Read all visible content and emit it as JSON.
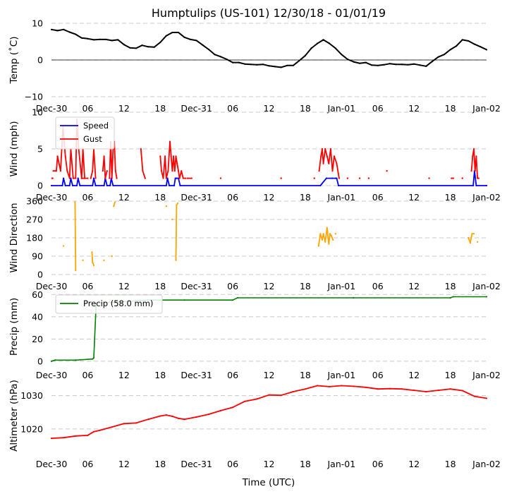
{
  "title": "Humptulips (US-101) 12/30/18 - 01/01/19",
  "xlabel": "Time (UTC)",
  "x_ticks": [
    "Dec-30",
    "06",
    "12",
    "18",
    "Dec-31",
    "06",
    "12",
    "18",
    "Jan-01",
    "06",
    "12",
    "18",
    "Jan-02"
  ],
  "x_range_hours": [
    0,
    72
  ],
  "colors": {
    "temp": "#000000",
    "speed": "#0000ff",
    "gust": "#ff0000",
    "direction": "#ffa500",
    "precip": "#008000",
    "altimeter": "#ff0000",
    "grid": "#c8c8c8"
  },
  "chart_data": [
    {
      "type": "line",
      "id": "temp",
      "ylabel": "Temp (˚C)",
      "ylim": [
        -10,
        10
      ],
      "yticks": [
        "10",
        "0",
        "−10"
      ],
      "ytick_values": [
        10,
        0,
        -10
      ],
      "zero_line": true,
      "series": [
        {
          "name": "Temp",
          "x": [
            0,
            1,
            2,
            3,
            4,
            5,
            6,
            7,
            8,
            9,
            10,
            11,
            12,
            13,
            14,
            15,
            16,
            17,
            18,
            19,
            20,
            21,
            22,
            23,
            24,
            25,
            26,
            27,
            28,
            29,
            30,
            31,
            32,
            33,
            34,
            35,
            36,
            37,
            38,
            39,
            40,
            41,
            42,
            43,
            44,
            45,
            46,
            47,
            48,
            49,
            50,
            51,
            52,
            53,
            54,
            55,
            56,
            57,
            58,
            59,
            60,
            61,
            62,
            63,
            64,
            65,
            66,
            67,
            68,
            69,
            70,
            71,
            72
          ],
          "values": [
            8.3,
            8.0,
            8.3,
            7.6,
            7.0,
            6.0,
            5.8,
            5.5,
            5.6,
            5.6,
            5.3,
            5.5,
            4.2,
            3.3,
            3.2,
            4.0,
            3.6,
            3.5,
            4.8,
            6.6,
            7.5,
            7.5,
            6.2,
            5.6,
            5.3,
            4.1,
            2.9,
            1.5,
            0.9,
            0.2,
            -0.7,
            -0.7,
            -1.1,
            -1.2,
            -1.3,
            -1.2,
            -1.6,
            -1.8,
            -2.0,
            -1.5,
            -1.5,
            -0.2,
            1.2,
            3.2,
            4.5,
            5.5,
            4.5,
            3.2,
            1.5,
            0.2,
            -0.5,
            -0.9,
            -0.7,
            -1.4,
            -1.5,
            -1.3,
            -1.0,
            -1.2,
            -1.2,
            -1.3,
            -1.1,
            -1.4,
            -1.7,
            -0.4,
            0.8,
            1.5,
            2.8,
            3.8,
            5.5,
            5.2,
            4.3,
            3.6,
            2.8
          ]
        }
      ]
    },
    {
      "type": "line",
      "id": "wind",
      "ylabel": "Wind (mph)",
      "ylim": [
        0,
        10
      ],
      "yticks": [
        "10",
        "5",
        "0"
      ],
      "ytick_values": [
        10,
        5,
        0
      ],
      "legend": [
        "Speed",
        "Gust"
      ],
      "legend_loc": "upper-left",
      "series": [
        {
          "name": "Speed",
          "x": [
            0,
            1.8,
            2.0,
            2.3,
            3.0,
            3.2,
            3.5,
            4.2,
            4.4,
            4.7,
            6.8,
            7.0,
            7.3,
            8.7,
            8.9,
            9.2,
            9.7,
            9.9,
            10.2,
            19.0,
            19.2,
            19.5,
            20.3,
            20.5,
            20.7,
            21.0,
            21.3,
            44.5,
            45.5,
            46.5,
            47.0,
            47.2,
            47.5,
            69.8,
            70.0,
            70.3,
            72
          ],
          "values": [
            0,
            0,
            1,
            0,
            0,
            1,
            0,
            0,
            1,
            0,
            0,
            1,
            0,
            0,
            1,
            0,
            0,
            1,
            0,
            0,
            1,
            0,
            0,
            1,
            1,
            1,
            0,
            0,
            1,
            1,
            1,
            1,
            0,
            0,
            2,
            0,
            0
          ]
        },
        {
          "name": "Gust",
          "segments": [
            {
              "x": [
                0.1,
                0.2
              ],
              "values": [
                1,
                1
              ]
            },
            {
              "x": [
                0.3,
                0.8,
                1.0,
                1.5,
                1.9,
                2.3,
                2.6,
                3.0,
                3.2,
                3.6,
                4.0,
                4.2,
                4.5,
                5.0,
                5.5
              ],
              "values": [
                2,
                2,
                4,
                2,
                8,
                4,
                2,
                1,
                5,
                1,
                1,
                9,
                5,
                1,
                1
              ]
            },
            {
              "x": [
                5.0,
                5.2,
                5.5,
                6.0
              ],
              "values": [
                1,
                5,
                1,
                1
              ]
            },
            {
              "x": [
                6.5,
                6.8,
                7.0,
                7.3
              ],
              "values": [
                1,
                2,
                5,
                1
              ]
            },
            {
              "x": [
                8.5,
                8.7,
                8.9,
                9.2
              ],
              "values": [
                2,
                4,
                1,
                2
              ]
            },
            {
              "x": [
                9.6,
                9.8,
                10.0,
                10.2,
                10.4,
                10.6,
                10.8
              ],
              "values": [
                1,
                6,
                1,
                5,
                6,
                2,
                1
              ]
            },
            {
              "x": [
                14.8,
                15.1,
                15.5
              ],
              "values": [
                5,
                2,
                1
              ]
            },
            {
              "x": [
                18.0,
                18.2,
                18.5,
                18.8,
                19.0,
                19.3,
                19.6,
                19.8,
                20.0,
                20.2,
                20.4,
                20.6,
                20.8,
                21.0,
                21.2,
                21.5,
                21.8,
                22.2
              ],
              "values": [
                4,
                2,
                1,
                4,
                1,
                2,
                6,
                4,
                2,
                4,
                2,
                4,
                3,
                2,
                1,
                2,
                1,
                1
              ]
            },
            {
              "x": [
                22.5,
                23.2
              ],
              "values": [
                1,
                1
              ]
            },
            {
              "x": [
                44.3,
                44.6,
                44.8,
                45.0,
                45.3,
                45.6,
                45.9,
                46.2,
                46.5,
                46.8,
                47.2,
                47.6
              ],
              "values": [
                2,
                4,
                5,
                3,
                5,
                4,
                3,
                5,
                2,
                4,
                3,
                1
              ]
            },
            {
              "x": [
                66.2,
                66.5
              ],
              "values": [
                1,
                1
              ]
            },
            {
              "x": [
                69.5,
                69.7,
                69.9,
                70.1,
                70.3,
                70.5,
                70.7
              ],
              "values": [
                2,
                4,
                5,
                2,
                4,
                1,
                1
              ]
            }
          ],
          "points": [
            [
              28,
              1
            ],
            [
              38,
              1
            ],
            [
              43.5,
              1
            ],
            [
              49,
              1
            ],
            [
              51,
              1
            ],
            [
              52.5,
              1
            ],
            [
              55.5,
              2
            ],
            [
              62.5,
              1
            ],
            [
              68,
              1
            ]
          ]
        }
      ]
    },
    {
      "type": "scatter",
      "id": "direction",
      "ylabel": "Wind Direction",
      "ylim": [
        0,
        360
      ],
      "yticks": [
        "360",
        "270",
        "180",
        "90",
        "0"
      ],
      "ytick_values": [
        360,
        270,
        180,
        90,
        0
      ],
      "series": [
        {
          "name": "Direction",
          "segments": [
            {
              "x": [
                3.9,
                4.0
              ],
              "values": [
                355,
                20
              ]
            },
            {
              "x": [
                6.7,
                6.8,
                7.0
              ],
              "values": [
                110,
                60,
                45
              ]
            },
            {
              "x": [
                10.3,
                10.5
              ],
              "values": [
                335,
                355
              ]
            },
            {
              "x": [
                20.6,
                20.7,
                20.9
              ],
              "values": [
                70,
                340,
                350
              ]
            },
            {
              "x": [
                44.2,
                44.5,
                44.8,
                45.0,
                45.3,
                45.6,
                45.9,
                46.1,
                46.3,
                46.6
              ],
              "values": [
                140,
                200,
                170,
                200,
                160,
                230,
                150,
                200,
                190,
                170
              ]
            },
            {
              "x": [
                69.0,
                69.3,
                69.6,
                69.9
              ],
              "values": [
                180,
                155,
                200,
                200
              ]
            }
          ],
          "points": [
            [
              2,
              140
            ],
            [
              5.2,
              70
            ],
            [
              8.7,
              70
            ],
            [
              10,
              90
            ],
            [
              19,
              335
            ],
            [
              20,
              270
            ],
            [
              47,
              200
            ],
            [
              70.5,
              160
            ]
          ]
        }
      ]
    },
    {
      "type": "line",
      "id": "precip",
      "ylabel": "Precip (mm)",
      "ylim": [
        -2,
        64
      ],
      "yticks": [
        "60",
        "40",
        "20",
        "0"
      ],
      "ytick_values": [
        60,
        40,
        20,
        0
      ],
      "legend": [
        "Precip (58.0 mm)"
      ],
      "legend_loc": "upper-left",
      "series": [
        {
          "name": "Precip (58.0 mm)",
          "x": [
            0,
            0.6,
            4,
            6.8,
            7.0,
            7.4,
            10,
            13,
            16,
            22,
            30,
            30.8,
            50,
            66,
            66.5,
            72
          ],
          "values": [
            0,
            1,
            1,
            2,
            3,
            52,
            53,
            54,
            55,
            55,
            55,
            57,
            57,
            57,
            58,
            58
          ]
        }
      ]
    },
    {
      "type": "line",
      "id": "altimeter",
      "ylabel": "Altimeter (hPa)",
      "ylim": [
        1013,
        1035
      ],
      "yticks": [
        "1030",
        "1020"
      ],
      "ytick_values": [
        1030,
        1020
      ],
      "series": [
        {
          "name": "Altimeter",
          "x": [
            0,
            2,
            4,
            6,
            7,
            8,
            10,
            12,
            14,
            16,
            18,
            19,
            20,
            21,
            22,
            24,
            26,
            28,
            30,
            32,
            34,
            36,
            38,
            40,
            42,
            44,
            46,
            48,
            50,
            52,
            54,
            56,
            58,
            60,
            62,
            64,
            66,
            68,
            70,
            72
          ],
          "values": [
            1017.2,
            1017.4,
            1017.9,
            1018.1,
            1019.2,
            1019.6,
            1020.6,
            1021.6,
            1021.8,
            1022.9,
            1023.9,
            1024.2,
            1023.8,
            1023.2,
            1022.9,
            1023.6,
            1024.4,
            1025.5,
            1026.5,
            1028.3,
            1029.0,
            1030.2,
            1030.1,
            1031.2,
            1032.0,
            1033.0,
            1032.7,
            1033.0,
            1032.8,
            1032.5,
            1032.0,
            1032.1,
            1032.0,
            1031.6,
            1031.2,
            1031.6,
            1032.0,
            1031.5,
            1029.8,
            1029.2
          ]
        }
      ]
    }
  ]
}
